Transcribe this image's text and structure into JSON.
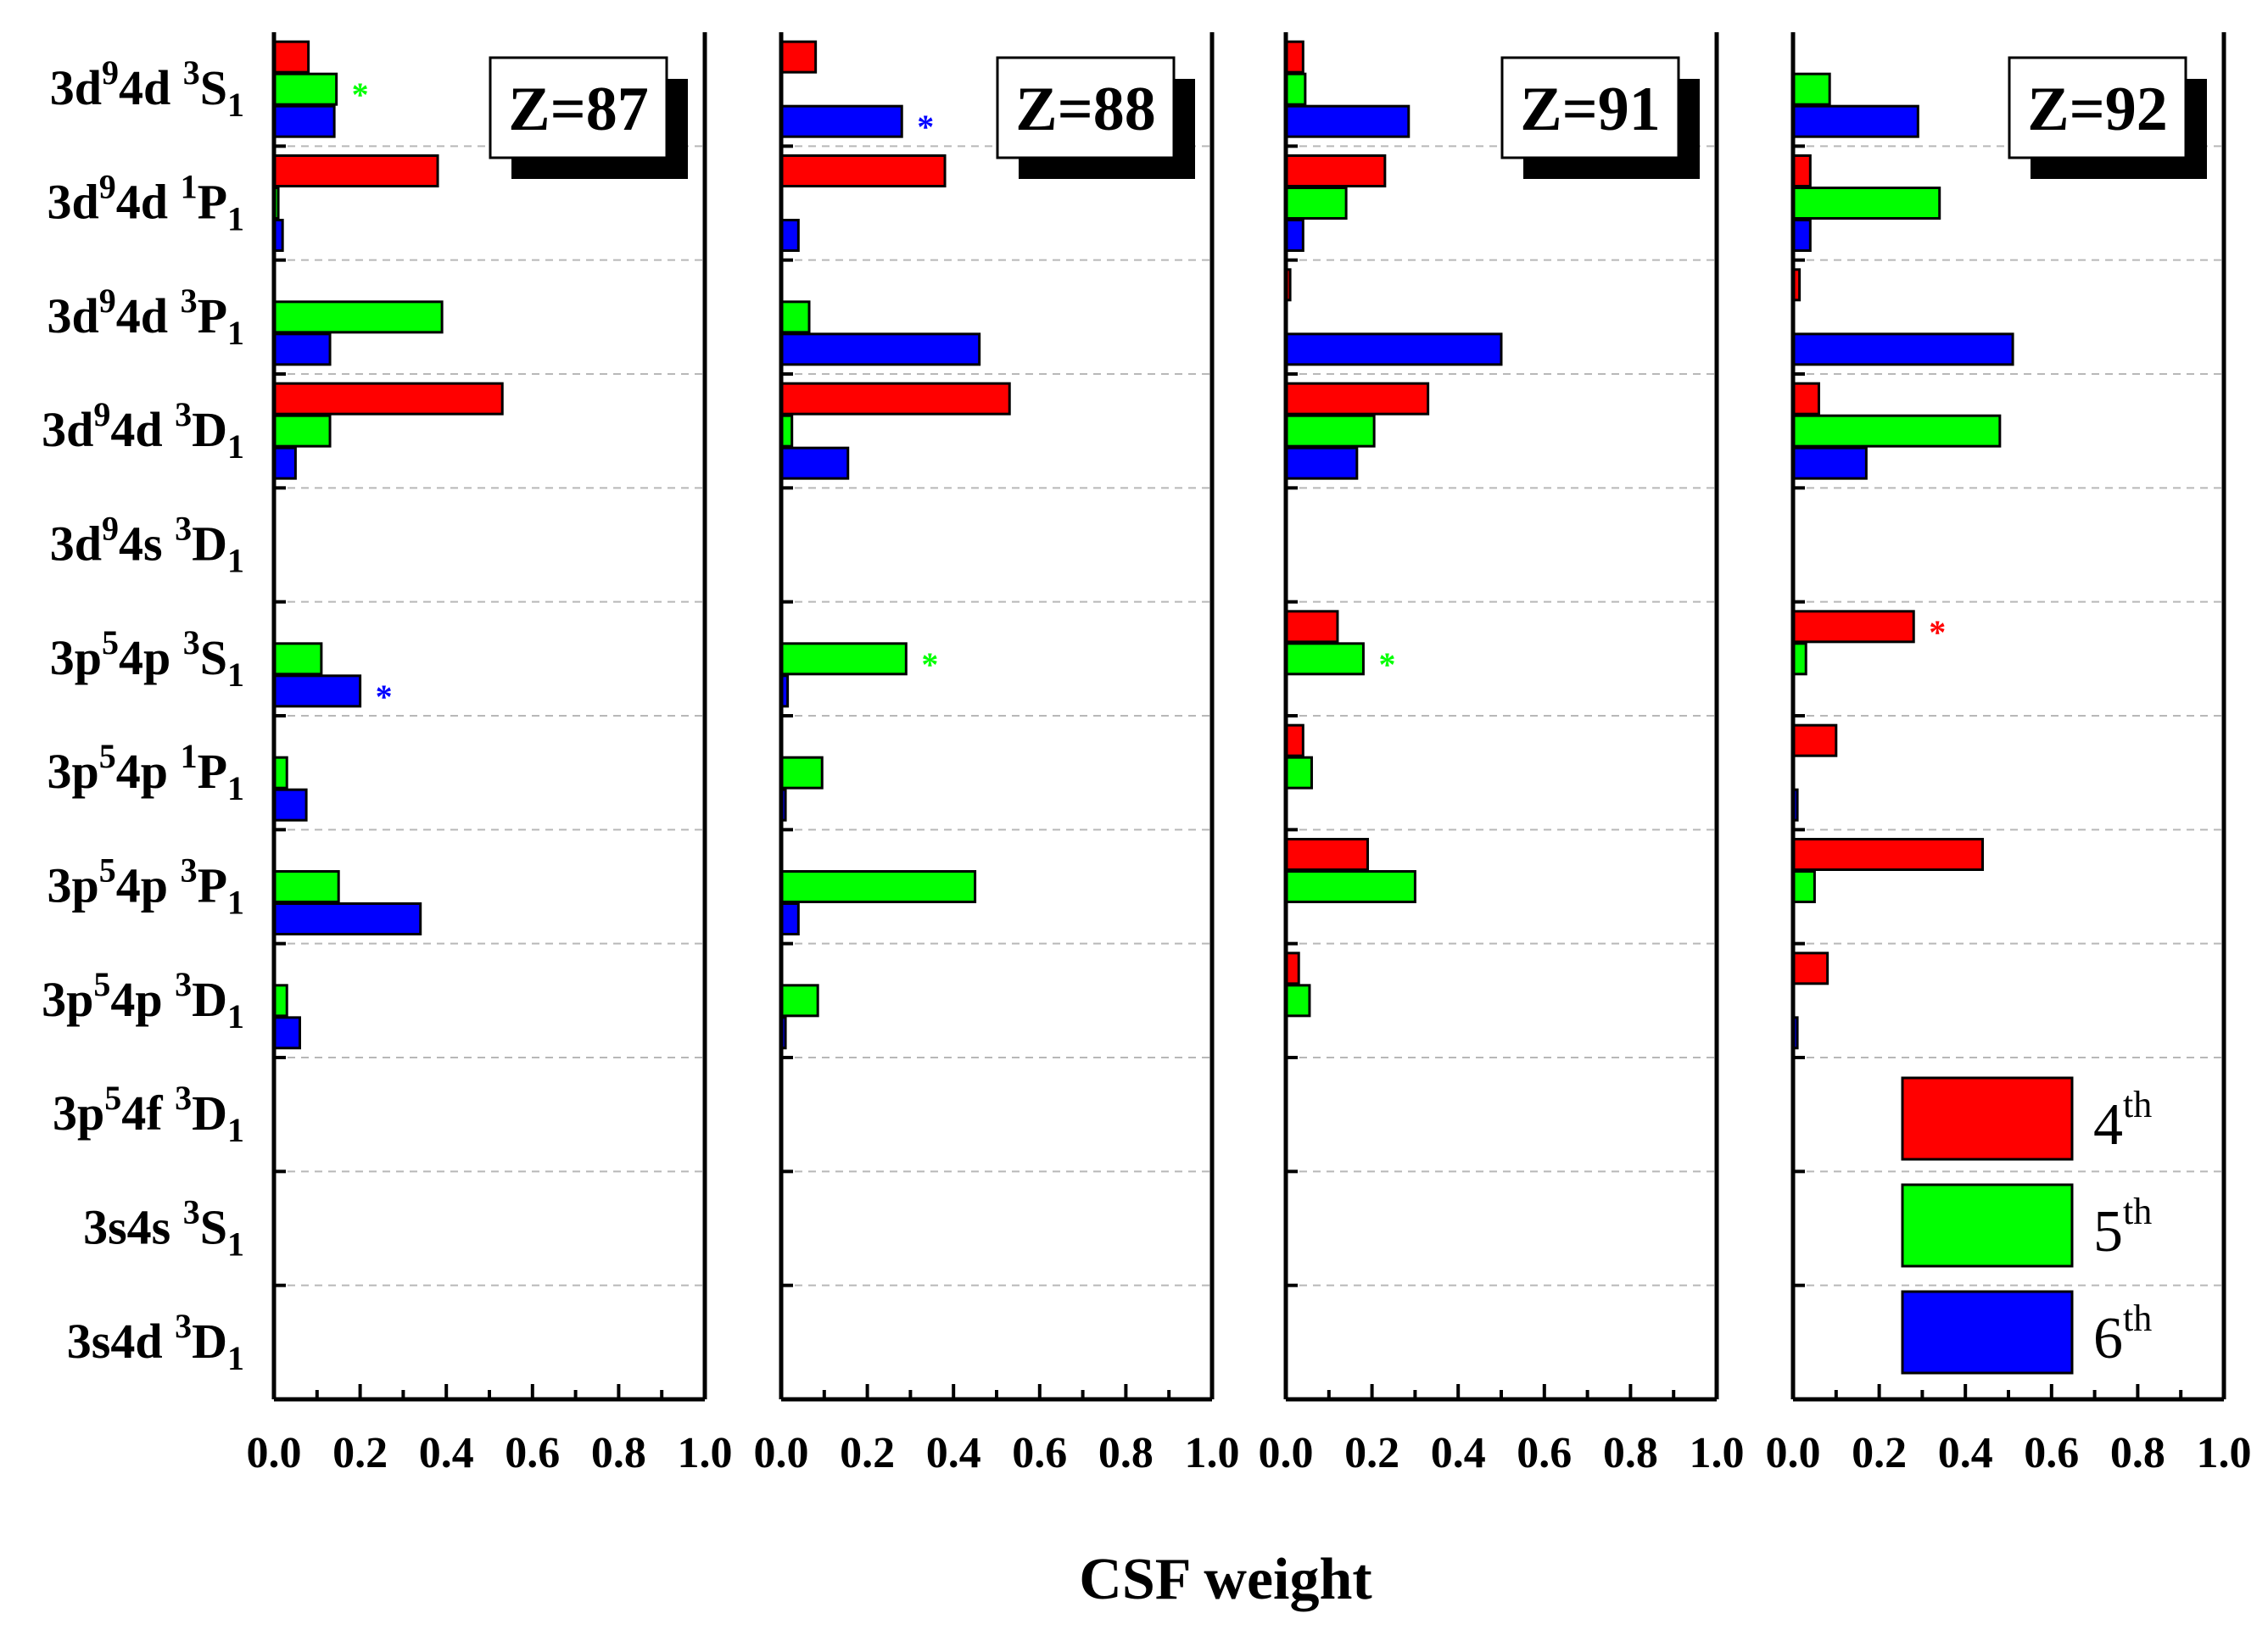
{
  "chart_data": {
    "type": "bar",
    "orientation": "horizontal",
    "xlabel": "CSF weight",
    "xlim": [
      0,
      1.0
    ],
    "x_ticks": [
      "0.0",
      "0.2",
      "0.4",
      "0.6",
      "0.8",
      "1.0"
    ],
    "categories": [
      {
        "core": "3d",
        "core_sup": "9",
        "orb": "4d ",
        "term_sup": "3",
        "term": "S",
        "term_sub": "1"
      },
      {
        "core": "3d",
        "core_sup": "9",
        "orb": "4d ",
        "term_sup": "1",
        "term": "P",
        "term_sub": "1"
      },
      {
        "core": "3d",
        "core_sup": "9",
        "orb": "4d ",
        "term_sup": "3",
        "term": "P",
        "term_sub": "1"
      },
      {
        "core": "3d",
        "core_sup": "9",
        "orb": "4d ",
        "term_sup": "3",
        "term": "D",
        "term_sub": "1"
      },
      {
        "core": "3d",
        "core_sup": "9",
        "orb": "4s ",
        "term_sup": "3",
        "term": "D",
        "term_sub": "1"
      },
      {
        "core": "3p",
        "core_sup": "5",
        "orb": "4p ",
        "term_sup": "3",
        "term": "S",
        "term_sub": "1"
      },
      {
        "core": "3p",
        "core_sup": "5",
        "orb": "4p ",
        "term_sup": "1",
        "term": "P",
        "term_sub": "1"
      },
      {
        "core": "3p",
        "core_sup": "5",
        "orb": "4p ",
        "term_sup": "3",
        "term": "P",
        "term_sub": "1"
      },
      {
        "core": "3p",
        "core_sup": "5",
        "orb": "4p ",
        "term_sup": "3",
        "term": "D",
        "term_sub": "1"
      },
      {
        "core": "3p",
        "core_sup": "5",
        "orb": "4f ",
        "term_sup": "3",
        "term": "D",
        "term_sub": "1"
      },
      {
        "core": "3s4s ",
        "core_sup": "",
        "orb": "",
        "term_sup": "3",
        "term": "S",
        "term_sub": "1"
      },
      {
        "core": "3s4d ",
        "core_sup": "",
        "orb": "",
        "term_sup": "3",
        "term": "D",
        "term_sub": "1"
      }
    ],
    "series_meta": [
      {
        "key": "4th",
        "name_base": "4",
        "name_sup": "th",
        "color": "#ff0000"
      },
      {
        "key": "5th",
        "name_base": "5",
        "name_sup": "th",
        "color": "#00ff00"
      },
      {
        "key": "6th",
        "name_base": "6",
        "name_sup": "th",
        "color": "#0000ff"
      }
    ],
    "panels": [
      {
        "title": "Z=87",
        "series": [
          {
            "name": "4th",
            "values": [
              0.08,
              0.38,
              0.0,
              0.53,
              0.0,
              0.0,
              0.0,
              0.0,
              0.0,
              0.0,
              0.0,
              0.0
            ]
          },
          {
            "name": "5th",
            "values": [
              0.145,
              0.01,
              0.39,
              0.13,
              0.0,
              0.11,
              0.03,
              0.15,
              0.03,
              0.0,
              0.0,
              0.0
            ]
          },
          {
            "name": "6th",
            "values": [
              0.14,
              0.02,
              0.13,
              0.05,
              0.0,
              0.2,
              0.075,
              0.34,
              0.06,
              0.0,
              0.0,
              0.0
            ]
          }
        ],
        "stars": [
          {
            "category": 0,
            "series": 1,
            "text": "*"
          },
          {
            "category": 5,
            "series": 2,
            "text": "*"
          }
        ]
      },
      {
        "title": "Z=88",
        "series": [
          {
            "name": "4th",
            "values": [
              0.08,
              0.38,
              0.0,
              0.53,
              0.0,
              0.0,
              0.0,
              0.0,
              0.0,
              0.0,
              0.0,
              0.0
            ]
          },
          {
            "name": "5th",
            "values": [
              0.0,
              0.0,
              0.065,
              0.025,
              0.0,
              0.29,
              0.095,
              0.45,
              0.085,
              0.0,
              0.0,
              0.0
            ]
          },
          {
            "name": "6th",
            "values": [
              0.28,
              0.04,
              0.46,
              0.155,
              0.0,
              0.015,
              0.01,
              0.04,
              0.01,
              0.0,
              0.0,
              0.0
            ]
          }
        ],
        "stars": [
          {
            "category": 0,
            "series": 2,
            "text": "*"
          },
          {
            "category": 5,
            "series": 1,
            "text": "*"
          }
        ]
      },
      {
        "title": "Z=91",
        "series": [
          {
            "name": "4th",
            "values": [
              0.04,
              0.23,
              0.01,
              0.33,
              0.0,
              0.12,
              0.04,
              0.19,
              0.03,
              0.0,
              0.0,
              0.0
            ]
          },
          {
            "name": "5th",
            "values": [
              0.045,
              0.14,
              0.0,
              0.205,
              0.0,
              0.18,
              0.06,
              0.3,
              0.055,
              0.0,
              0.0,
              0.0
            ]
          },
          {
            "name": "6th",
            "values": [
              0.285,
              0.04,
              0.5,
              0.165,
              0.0,
              0.0,
              0.0,
              0.0,
              0.0,
              0.0,
              0.0,
              0.0
            ]
          }
        ],
        "stars": [
          {
            "category": 5,
            "series": 1,
            "text": "*"
          }
        ]
      },
      {
        "title": "Z=92",
        "series": [
          {
            "name": "4th",
            "values": [
              0.0,
              0.04,
              0.015,
              0.06,
              0.0,
              0.28,
              0.1,
              0.44,
              0.08,
              0.0,
              0.0,
              0.0
            ]
          },
          {
            "name": "5th",
            "values": [
              0.085,
              0.34,
              0.0,
              0.48,
              0.0,
              0.03,
              0.0,
              0.05,
              0.0,
              0.0,
              0.0,
              0.0
            ]
          },
          {
            "name": "6th",
            "values": [
              0.29,
              0.04,
              0.51,
              0.17,
              0.0,
              0.0,
              0.01,
              0.0,
              0.01,
              0.0,
              0.0,
              0.0
            ]
          }
        ],
        "stars": [
          {
            "category": 5,
            "series": 0,
            "text": "*"
          }
        ]
      }
    ],
    "legend": {
      "location": "bottom-right",
      "panel": 3
    }
  }
}
